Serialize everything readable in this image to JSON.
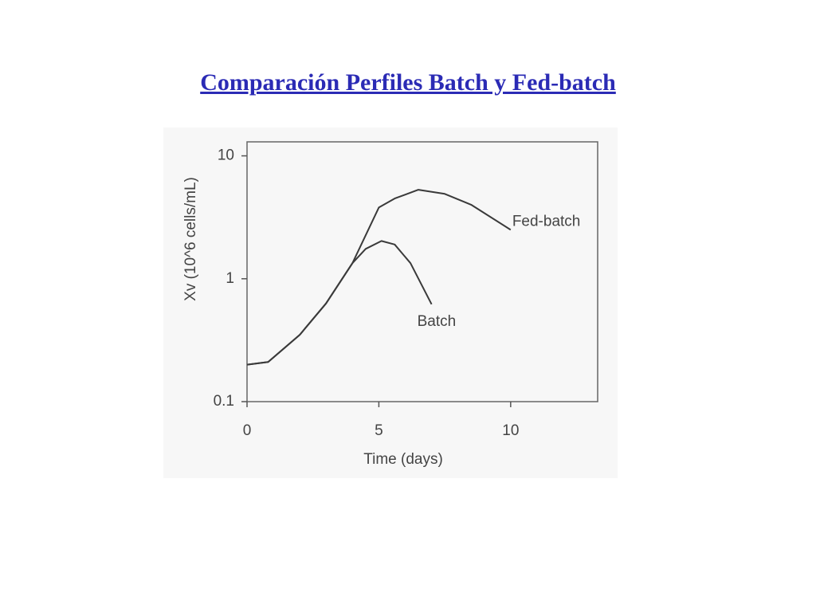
{
  "chart_data": {
    "type": "line",
    "title": "Comparación Perfiles Batch y Fed-batch",
    "xlabel": "Time (days)",
    "ylabel": "Xv (10^6 cells/mL)",
    "xlim": [
      0,
      13.3
    ],
    "xticks": [
      0,
      5,
      10
    ],
    "ylim": [
      0.1,
      13
    ],
    "yticks": [
      0.1,
      1,
      10
    ],
    "yscale": "log",
    "series": [
      {
        "name": "Fed-batch",
        "color": "#3a3a3a",
        "x": [
          0,
          0.8,
          2,
          3,
          4,
          5,
          5.6,
          6.5,
          7.5,
          8.5,
          10
        ],
        "values": [
          0.2,
          0.21,
          0.35,
          0.63,
          1.34,
          3.8,
          4.5,
          5.3,
          4.9,
          4.0,
          2.5
        ]
      },
      {
        "name": "Batch",
        "color": "#3a3a3a",
        "x": [
          0,
          0.8,
          2,
          3,
          4,
          4.5,
          5.1,
          5.6,
          6.2,
          7
        ],
        "values": [
          0.2,
          0.21,
          0.35,
          0.63,
          1.34,
          1.75,
          2.03,
          1.9,
          1.34,
          0.62
        ]
      }
    ]
  }
}
